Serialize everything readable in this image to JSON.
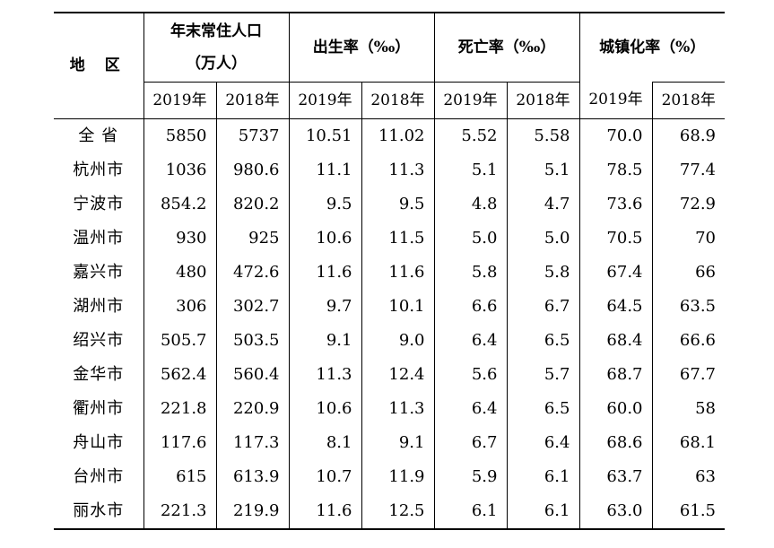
{
  "header": {
    "region": "地 区",
    "population_line1": "年末常住人口",
    "population_line2": "（万人）",
    "birth_rate": "出生率（‰）",
    "death_rate": "死亡率（‰）",
    "urbanization": "城镇化率（%）",
    "year_2019": "2019年",
    "year_2018": "2018年"
  },
  "rows": [
    {
      "region": "全 省",
      "pop2019": "5850",
      "pop2018": "5737",
      "birth2019": "10.51",
      "birth2018": "11.02",
      "death2019": "5.52",
      "death2018": "5.58",
      "urban2019": "70.0",
      "urban2018": "68.9"
    },
    {
      "region": "杭州市",
      "pop2019": "1036",
      "pop2018": "980.6",
      "birth2019": "11.1",
      "birth2018": "11.3",
      "death2019": "5.1",
      "death2018": "5.1",
      "urban2019": "78.5",
      "urban2018": "77.4"
    },
    {
      "region": "宁波市",
      "pop2019": "854.2",
      "pop2018": "820.2",
      "birth2019": "9.5",
      "birth2018": "9.5",
      "death2019": "4.8",
      "death2018": "4.7",
      "urban2019": "73.6",
      "urban2018": "72.9"
    },
    {
      "region": "温州市",
      "pop2019": "930",
      "pop2018": "925",
      "birth2019": "10.6",
      "birth2018": "11.5",
      "death2019": "5.0",
      "death2018": "5.0",
      "urban2019": "70.5",
      "urban2018": "70"
    },
    {
      "region": "嘉兴市",
      "pop2019": "480",
      "pop2018": "472.6",
      "birth2019": "11.6",
      "birth2018": "11.6",
      "death2019": "5.8",
      "death2018": "5.8",
      "urban2019": "67.4",
      "urban2018": "66"
    },
    {
      "region": "湖州市",
      "pop2019": "306",
      "pop2018": "302.7",
      "birth2019": "9.7",
      "birth2018": "10.1",
      "death2019": "6.6",
      "death2018": "6.7",
      "urban2019": "64.5",
      "urban2018": "63.5"
    },
    {
      "region": "绍兴市",
      "pop2019": "505.7",
      "pop2018": "503.5",
      "birth2019": "9.1",
      "birth2018": "9.0",
      "death2019": "6.4",
      "death2018": "6.5",
      "urban2019": "68.4",
      "urban2018": "66.6"
    },
    {
      "region": "金华市",
      "pop2019": "562.4",
      "pop2018": "560.4",
      "birth2019": "11.3",
      "birth2018": "12.4",
      "death2019": "5.6",
      "death2018": "5.7",
      "urban2019": "68.7",
      "urban2018": "67.7"
    },
    {
      "region": "衢州市",
      "pop2019": "221.8",
      "pop2018": "220.9",
      "birth2019": "10.6",
      "birth2018": "11.3",
      "death2019": "6.4",
      "death2018": "6.5",
      "urban2019": "60.0",
      "urban2018": "58"
    },
    {
      "region": "舟山市",
      "pop2019": "117.6",
      "pop2018": "117.3",
      "birth2019": "8.1",
      "birth2018": "9.1",
      "death2019": "6.7",
      "death2018": "6.4",
      "urban2019": "68.6",
      "urban2018": "68.1"
    },
    {
      "region": "台州市",
      "pop2019": "615",
      "pop2018": "613.9",
      "birth2019": "10.7",
      "birth2018": "11.9",
      "death2019": "5.9",
      "death2018": "6.1",
      "urban2019": "63.7",
      "urban2018": "63"
    },
    {
      "region": "丽水市",
      "pop2019": "221.3",
      "pop2018": "219.9",
      "birth2019": "11.6",
      "birth2018": "12.5",
      "death2019": "6.1",
      "death2018": "6.1",
      "urban2019": "63.0",
      "urban2018": "61.5"
    }
  ]
}
